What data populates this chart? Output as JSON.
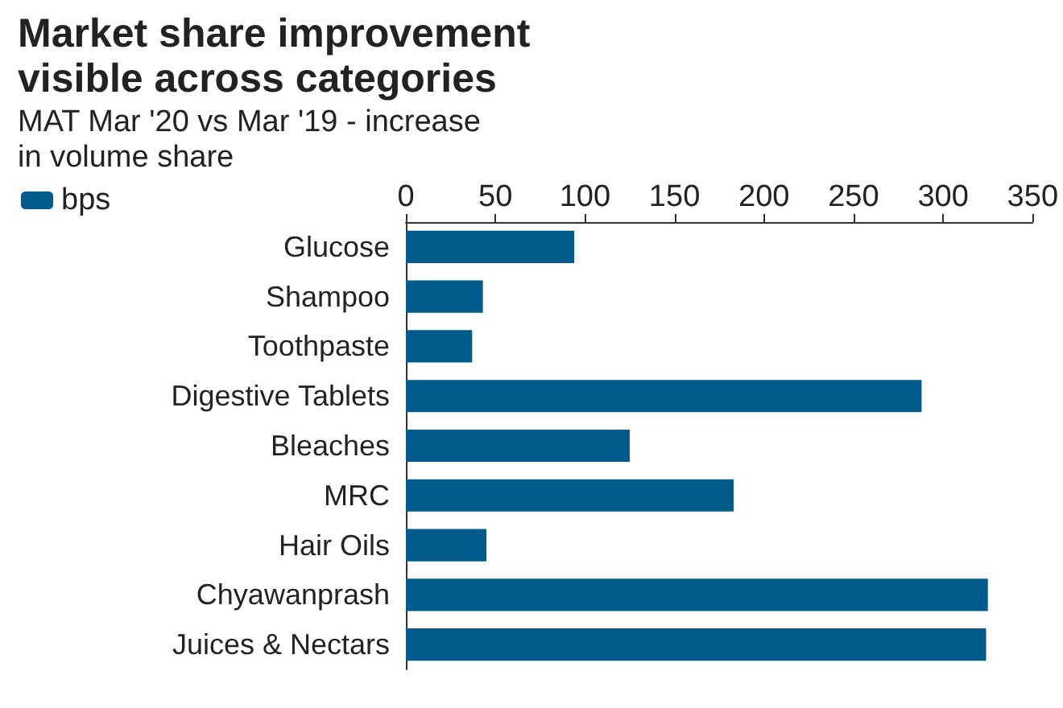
{
  "chart_data": {
    "type": "bar",
    "orientation": "horizontal",
    "title": "Market share improvement\nvisible across categories",
    "subtitle": "MAT Mar '20 vs Mar '19 - increase\nin volume share",
    "categories": [
      "Glucose",
      "Shampoo",
      "Toothpaste",
      "Digestive Tablets",
      "Bleaches",
      "MRC",
      "Hair Oils",
      "Chyawanprash",
      "Juices & Nectars"
    ],
    "series": [
      {
        "name": "bps",
        "color": "#005a8c",
        "values": [
          94,
          43,
          37,
          288,
          125,
          183,
          45,
          325,
          324
        ]
      }
    ],
    "xlim": [
      0,
      350
    ],
    "xticks": [
      0,
      50,
      100,
      150,
      200,
      250,
      300,
      350
    ],
    "grid": false,
    "legend": "top left"
  }
}
